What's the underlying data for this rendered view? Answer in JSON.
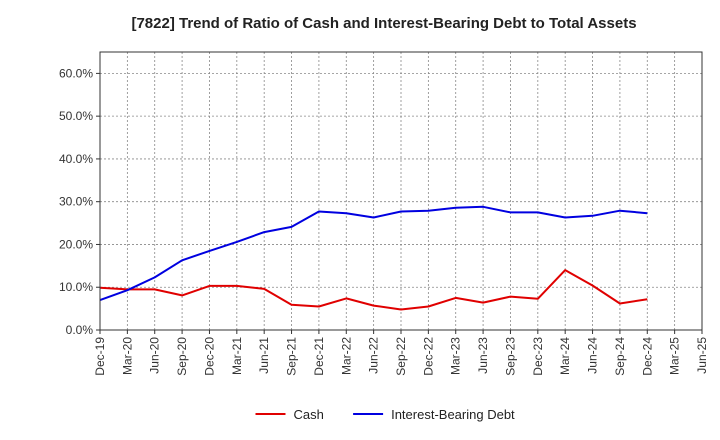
{
  "chart_data": {
    "type": "line",
    "title": "[7822]  Trend of Ratio of Cash and Interest-Bearing Debt to Total Assets",
    "xlabel": "",
    "ylabel": "",
    "x_tick_labels": [
      "Dec-19",
      "Mar-20",
      "Jun-20",
      "Sep-20",
      "Dec-20",
      "Mar-21",
      "Jun-21",
      "Sep-21",
      "Dec-21",
      "Mar-22",
      "Jun-22",
      "Sep-22",
      "Dec-22",
      "Mar-23",
      "Jun-23",
      "Sep-23",
      "Dec-23",
      "Mar-24",
      "Jun-24",
      "Sep-24",
      "Dec-24",
      "Mar-25",
      "Jun-25"
    ],
    "x": [
      "Dec-19",
      "Mar-20",
      "Jun-20",
      "Sep-20",
      "Dec-20",
      "Mar-21",
      "Jun-21",
      "Sep-21",
      "Dec-21",
      "Mar-22",
      "Jun-22",
      "Sep-22",
      "Dec-22",
      "Mar-23",
      "Jun-23",
      "Sep-23",
      "Dec-23",
      "Mar-24",
      "Jun-24",
      "Sep-24",
      "Dec-24"
    ],
    "ylim": [
      0,
      0.65
    ],
    "y_ticks": [
      0,
      0.1,
      0.2,
      0.3,
      0.4,
      0.5,
      0.6
    ],
    "y_tick_labels": [
      "0.0%",
      "10.0%",
      "20.0%",
      "30.0%",
      "40.0%",
      "50.0%",
      "60.0%"
    ],
    "grid": true,
    "legend_position": "bottom",
    "series": [
      {
        "name": "Cash",
        "color": "#e00000",
        "values": [
          0.099,
          0.095,
          0.095,
          0.081,
          0.103,
          0.103,
          0.096,
          0.059,
          0.055,
          0.074,
          0.057,
          0.048,
          0.055,
          0.075,
          0.064,
          0.078,
          0.073,
          0.14,
          0.104,
          0.062,
          0.072
        ]
      },
      {
        "name": "Interest-Bearing Debt",
        "color": "#0000e0",
        "values": [
          0.07,
          0.093,
          0.123,
          0.163,
          0.185,
          0.206,
          0.229,
          0.241,
          0.277,
          0.273,
          0.263,
          0.277,
          0.279,
          0.286,
          0.288,
          0.275,
          0.275,
          0.263,
          0.267,
          0.279,
          0.273
        ]
      }
    ]
  }
}
